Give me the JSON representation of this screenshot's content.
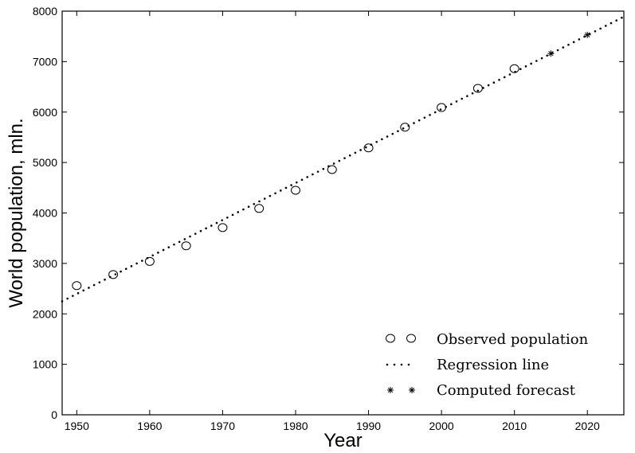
{
  "chart_data": {
    "type": "scatter",
    "title": "",
    "xlabel": "Year",
    "ylabel": "World population, mln.",
    "xlim": [
      1948,
      2025
    ],
    "ylim": [
      0,
      8000
    ],
    "xticks": [
      1950,
      1960,
      1970,
      1980,
      1990,
      2000,
      2010,
      2020
    ],
    "yticks": [
      0,
      1000,
      2000,
      3000,
      4000,
      5000,
      6000,
      7000,
      8000
    ],
    "grid": false,
    "legend_position": "bottom-right",
    "series": [
      {
        "name": "Observed population",
        "marker": "circle",
        "x": [
          1950,
          1955,
          1960,
          1965,
          1970,
          1975,
          1980,
          1985,
          1990,
          1995,
          2000,
          2005,
          2010
        ],
        "y": [
          2560,
          2780,
          3040,
          3350,
          3710,
          4090,
          4450,
          4860,
          5290,
          5700,
          6090,
          6470,
          6860
        ]
      },
      {
        "name": "Regression line",
        "style": "dotted",
        "x": [
          1948,
          2025
        ],
        "y": [
          2250,
          7890
        ]
      },
      {
        "name": "Computed forecast",
        "marker": "star",
        "x": [
          2015,
          2020
        ],
        "y": [
          7160,
          7530
        ]
      }
    ]
  }
}
